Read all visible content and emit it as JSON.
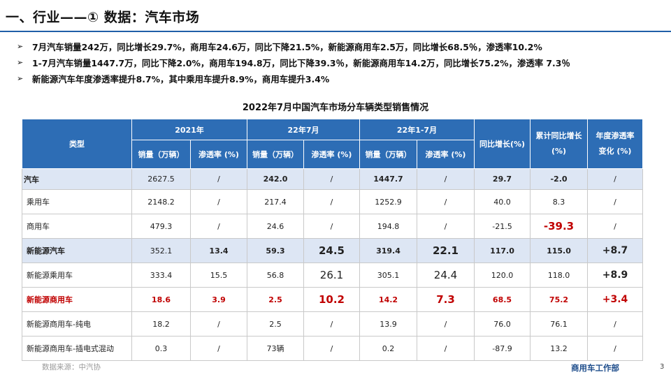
{
  "slide": {
    "title": "一、行业——① 数据：汽车市场",
    "bullet_symbol": "➢",
    "bullets": [
      "7月汽车销量242万，同比增长29.7%，商用车24.6万，同比下降21.5%，新能源商用车2.5万，同比增长68.5％，渗透率10.2%",
      "1-7月汽车销量1447.7万，同比下降2.0%，商用车194.8万，同比下降39.3％，新能源商用车14.2万，同比增长75.2%，渗透率 7.3％",
      "新能源汽车年度渗透率提升8.7%，其中乘用车提升8.9%，商用车提升3.4%"
    ],
    "source": "数据来源：中汽协",
    "department": "商用车工作部",
    "page_number": "3"
  },
  "table": {
    "title": "2022年7月中国汽车市场分车辆类型销售情况",
    "header": {
      "type": "类型",
      "group_2021": "2021年",
      "group_jul": "22年7月",
      "group_jan_jul": "22年1-7月",
      "yoy": "同比增长(%)",
      "cum_yoy_1": "累计同比增长",
      "cum_yoy_2": "(%)",
      "annual_pen_1": "年度渗透率",
      "annual_pen_2": "变化 (%)",
      "sales": "销量（万辆）",
      "penetration": "渗透率 (%)"
    },
    "rows": [
      {
        "type": "汽车",
        "c2021_sales": "2627.5",
        "c2021_pen": "/",
        "jul_sales": "242.0",
        "jul_pen": "/",
        "ytd_sales": "1447.7",
        "ytd_pen": "/",
        "yoy": "29.7",
        "cum_yoy": "-2.0",
        "annual_change": "/"
      },
      {
        "type": "乘用车",
        "c2021_sales": "2148.2",
        "c2021_pen": "/",
        "jul_sales": "217.4",
        "jul_pen": "/",
        "ytd_sales": "1252.9",
        "ytd_pen": "/",
        "yoy": "40.0",
        "cum_yoy": "8.3",
        "annual_change": "/"
      },
      {
        "type": "商用车",
        "c2021_sales": "479.3",
        "c2021_pen": "/",
        "jul_sales": "24.6",
        "jul_pen": "/",
        "ytd_sales": "194.8",
        "ytd_pen": "/",
        "yoy": "-21.5",
        "cum_yoy": "-39.3",
        "annual_change": "/"
      },
      {
        "type": "新能源汽车",
        "c2021_sales": "352.1",
        "c2021_pen": "13.4",
        "jul_sales": "59.3",
        "jul_pen": "24.5",
        "ytd_sales": "319.4",
        "ytd_pen": "22.1",
        "yoy": "117.0",
        "cum_yoy": "115.0",
        "annual_change": "+8.7"
      },
      {
        "type": "新能源乘用车",
        "c2021_sales": "333.4",
        "c2021_pen": "15.5",
        "jul_sales": "56.8",
        "jul_pen": "26.1",
        "ytd_sales": "305.1",
        "ytd_pen": "24.4",
        "yoy": "120.0",
        "cum_yoy": "118.0",
        "annual_change": "+8.9"
      },
      {
        "type": "新能源商用车",
        "c2021_sales": "18.6",
        "c2021_pen": "3.9",
        "jul_sales": "2.5",
        "jul_pen": "10.2",
        "ytd_sales": "14.2",
        "ytd_pen": "7.3",
        "yoy": "68.5",
        "cum_yoy": "75.2",
        "annual_change": "+3.4"
      },
      {
        "type": "新能源商用车-纯电",
        "c2021_sales": "18.2",
        "c2021_pen": "/",
        "jul_sales": "2.5",
        "jul_pen": "/",
        "ytd_sales": "13.9",
        "ytd_pen": "/",
        "yoy": "76.0",
        "cum_yoy": "76.1",
        "annual_change": "/"
      },
      {
        "type": "新能源商用车-插电式混动",
        "c2021_sales": "0.3",
        "c2021_pen": "/",
        "jul_sales": "73辆",
        "jul_pen": "/",
        "ytd_sales": "0.2",
        "ytd_pen": "/",
        "yoy": "-87.9",
        "cum_yoy": "13.2",
        "annual_change": "/"
      }
    ]
  },
  "colors": {
    "header_bg": "#2d6db5",
    "highlight_row_bg": "#dde6f4",
    "emphasis_red": "#c00000",
    "title_rule": "#1f5fa8"
  }
}
